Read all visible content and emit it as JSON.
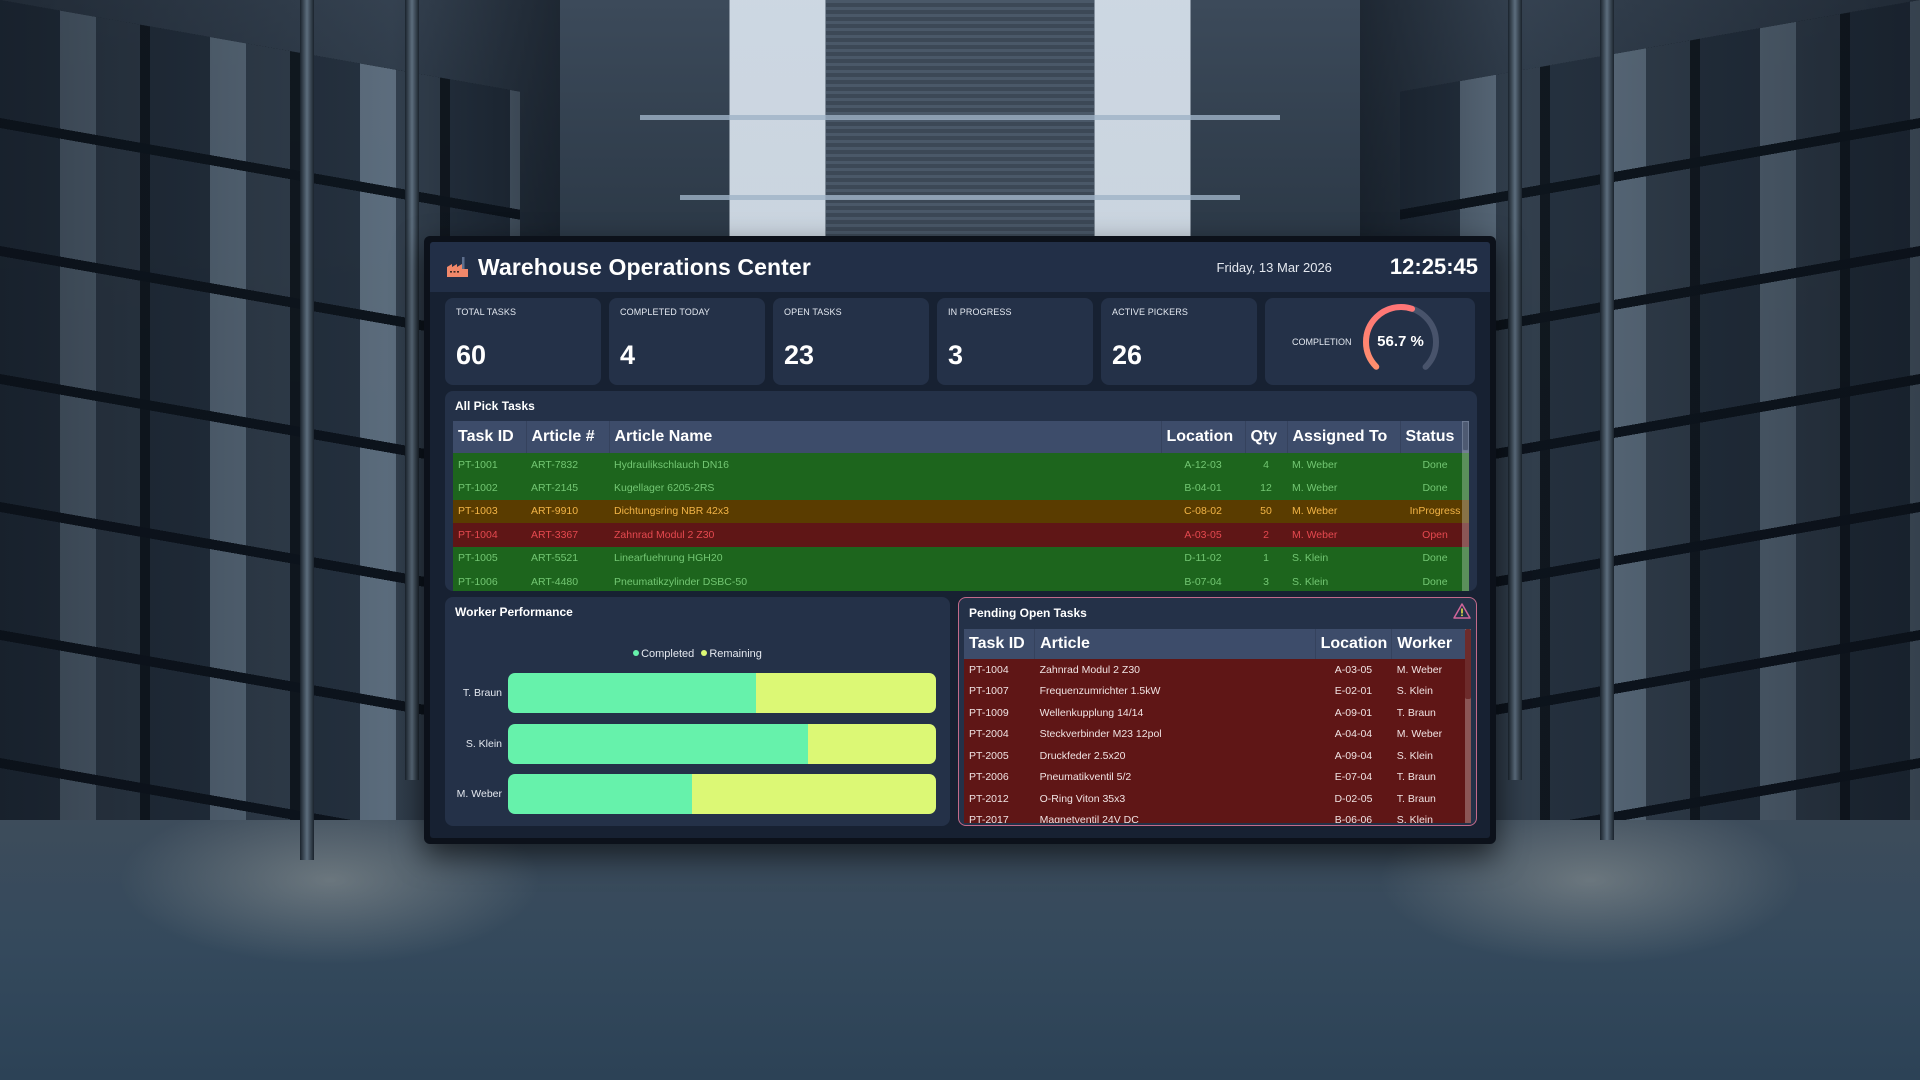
{
  "header": {
    "title": "Warehouse Operations Center",
    "date": "Friday, 13 Mar 2026",
    "time": "12:25:45",
    "icon": "factory-icon"
  },
  "kpis": [
    {
      "label": "TOTAL TASKS",
      "value": "60"
    },
    {
      "label": "COMPLETED TODAY",
      "value": "4"
    },
    {
      "label": "OPEN TASKS",
      "value": "23"
    },
    {
      "label": "IN PROGRESS",
      "value": "3"
    },
    {
      "label": "ACTIVE PICKERS",
      "value": "26"
    }
  ],
  "completion": {
    "label": "COMPLETION",
    "value_text": "56.7 %",
    "percent": 56.7
  },
  "pick_tasks": {
    "title": "All Pick Tasks",
    "columns": [
      "Task ID",
      "Article #",
      "Article Name",
      "Location",
      "Qty",
      "Assigned To",
      "Status"
    ],
    "rows": [
      {
        "id": "PT-1001",
        "article": "ART-7832",
        "name": "Hydraulikschlauch DN16",
        "location": "A-12-03",
        "qty": "4",
        "assigned": "M. Weber",
        "status": "Done"
      },
      {
        "id": "PT-1002",
        "article": "ART-2145",
        "name": "Kugellager 6205-2RS",
        "location": "B-04-01",
        "qty": "12",
        "assigned": "M. Weber",
        "status": "Done"
      },
      {
        "id": "PT-1003",
        "article": "ART-9910",
        "name": "Dichtungsring NBR 42x3",
        "location": "C-08-02",
        "qty": "50",
        "assigned": "M. Weber",
        "status": "InProgress"
      },
      {
        "id": "PT-1004",
        "article": "ART-3367",
        "name": "Zahnrad Modul 2 Z30",
        "location": "A-03-05",
        "qty": "2",
        "assigned": "M. Weber",
        "status": "Open"
      },
      {
        "id": "PT-1005",
        "article": "ART-5521",
        "name": "Linearfuehrung HGH20",
        "location": "D-11-02",
        "qty": "1",
        "assigned": "S. Klein",
        "status": "Done"
      },
      {
        "id": "PT-1006",
        "article": "ART-4480",
        "name": "Pneumatikzylinder DSBC-50",
        "location": "B-07-04",
        "qty": "3",
        "assigned": "S. Klein",
        "status": "Done"
      }
    ]
  },
  "worker_performance": {
    "title": "Worker Performance",
    "legend": [
      {
        "label": "Completed",
        "color": "#66f2ab"
      },
      {
        "label": "Remaining",
        "color": "#dcf875"
      }
    ]
  },
  "pending": {
    "title": "Pending Open Tasks",
    "icon": "warning-icon",
    "columns": [
      "Task ID",
      "Article",
      "Location",
      "Worker"
    ],
    "rows": [
      {
        "id": "PT-1004",
        "article": "Zahnrad Modul 2 Z30",
        "location": "A-03-05",
        "worker": "M. Weber"
      },
      {
        "id": "PT-1007",
        "article": "Frequenzumrichter 1.5kW",
        "location": "E-02-01",
        "worker": "S. Klein"
      },
      {
        "id": "PT-1009",
        "article": "Wellenkupplung 14/14",
        "location": "A-09-01",
        "worker": "T. Braun"
      },
      {
        "id": "PT-2004",
        "article": "Steckverbinder M23 12pol",
        "location": "A-04-04",
        "worker": "M. Weber"
      },
      {
        "id": "PT-2005",
        "article": "Druckfeder 2.5x20",
        "location": "A-09-04",
        "worker": "S. Klein"
      },
      {
        "id": "PT-2006",
        "article": "Pneumatikventil 5/2",
        "location": "E-07-04",
        "worker": "T. Braun"
      },
      {
        "id": "PT-2012",
        "article": "O-Ring Viton 35x3",
        "location": "D-02-05",
        "worker": "T. Braun"
      },
      {
        "id": "PT-2017",
        "article": "Magnetventil 24V DC",
        "location": "B-06-06",
        "worker": "S. Klein"
      }
    ]
  },
  "chart_data": {
    "type": "bar",
    "orientation": "horizontal",
    "stacked": true,
    "normalized": true,
    "title": "Worker Performance",
    "categories": [
      "T. Braun",
      "S. Klein",
      "M. Weber"
    ],
    "series": [
      {
        "name": "Completed",
        "color": "#66f2ab",
        "values": [
          58,
          70,
          43
        ]
      },
      {
        "name": "Remaining",
        "color": "#dcf875",
        "values": [
          42,
          30,
          57
        ]
      }
    ],
    "xlabel": "",
    "ylabel": "",
    "xlim": [
      0,
      100
    ],
    "grid": false,
    "legend_position": "top"
  },
  "colors": {
    "screen_bg": "#172132",
    "card_bg": "#243148",
    "header_bg": "#222f47",
    "table_header_bg": "#3d4c6a",
    "done_row": "#1d651d",
    "inprogress_row": "#5a3c00",
    "open_row": "#5f1616",
    "gauge_fill": "#ff7a72",
    "gauge_track": "#48536b",
    "alert_border": "#c36a8a"
  }
}
